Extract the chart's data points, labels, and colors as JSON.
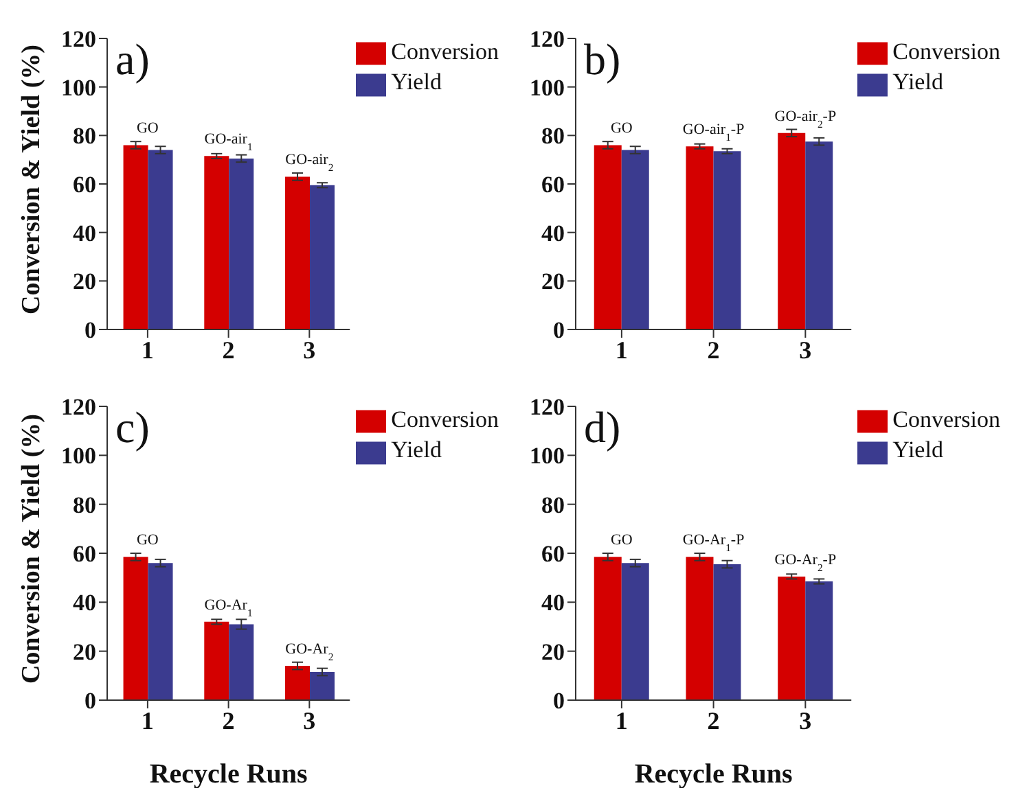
{
  "chart_data": [
    {
      "type": "bar",
      "title": "a)",
      "ylabel": "Conversion & Yield (%)",
      "categories": [
        "1",
        "2",
        "3"
      ],
      "series": [
        {
          "name": "Conversion",
          "color": "#d40000",
          "values": [
            76,
            71.5,
            63
          ],
          "errors": [
            1.5,
            1,
            1.5
          ]
        },
        {
          "name": "Yield",
          "color": "#3b3b8f",
          "values": [
            74,
            70.5,
            59.5
          ],
          "errors": [
            1.5,
            1.5,
            1
          ]
        }
      ],
      "ylim": [
        0,
        120
      ],
      "yticks": [
        0,
        20,
        40,
        60,
        80,
        100,
        120
      ],
      "grid": false,
      "legend": "top right",
      "annotations": [
        {
          "text": "GO",
          "x": "1",
          "y": 76
        },
        {
          "text": "GO-air$_{1}$",
          "x": "2",
          "y": 71.5
        },
        {
          "text": "GO-air$_{2}$",
          "x": "3",
          "y": 63
        }
      ]
    },
    {
      "type": "bar",
      "title": "b)",
      "categories": [
        "1",
        "2",
        "3"
      ],
      "series": [
        {
          "name": "Conversion",
          "color": "#d40000",
          "values": [
            76,
            75.5,
            81
          ],
          "errors": [
            1.5,
            1,
            1.5
          ]
        },
        {
          "name": "Yield",
          "color": "#3b3b8f",
          "values": [
            74,
            73.5,
            77.5
          ],
          "errors": [
            1.5,
            1,
            1.5
          ]
        }
      ],
      "ylim": [
        0,
        120
      ],
      "yticks": [
        0,
        20,
        40,
        60,
        80,
        100,
        120
      ],
      "grid": false,
      "legend": "top right",
      "annotations": [
        {
          "text": "GO",
          "x": "1",
          "y": 76
        },
        {
          "text": "GO-air$_{1}$-P",
          "x": "2",
          "y": 75.5
        },
        {
          "text": "GO-air$_{2}$-P",
          "x": "3",
          "y": 81
        }
      ]
    },
    {
      "type": "bar",
      "title": "c)",
      "xlabel": "Recycle Runs",
      "ylabel": "Conversion & Yield (%)",
      "categories": [
        "1",
        "2",
        "3"
      ],
      "series": [
        {
          "name": "Conversion",
          "color": "#d40000",
          "values": [
            58.5,
            32,
            14
          ],
          "errors": [
            1.5,
            1,
            1.5
          ]
        },
        {
          "name": "Yield",
          "color": "#3b3b8f",
          "values": [
            56,
            31,
            11.5
          ],
          "errors": [
            1.5,
            2,
            1.5
          ]
        }
      ],
      "ylim": [
        0,
        120
      ],
      "yticks": [
        0,
        20,
        40,
        60,
        80,
        100,
        120
      ],
      "grid": false,
      "legend": "top right",
      "annotations": [
        {
          "text": "GO",
          "x": "1",
          "y": 58.5
        },
        {
          "text": "GO-Ar$_{1}$",
          "x": "2",
          "y": 32
        },
        {
          "text": "GO-Ar$_{2}$",
          "x": "3",
          "y": 14
        }
      ]
    },
    {
      "type": "bar",
      "title": "d)",
      "xlabel": "Recycle Runs",
      "categories": [
        "1",
        "2",
        "3"
      ],
      "series": [
        {
          "name": "Conversion",
          "color": "#d40000",
          "values": [
            58.5,
            58.5,
            50.5
          ],
          "errors": [
            1.5,
            1.5,
            1
          ]
        },
        {
          "name": "Yield",
          "color": "#3b3b8f",
          "values": [
            56,
            55.5,
            48.5
          ],
          "errors": [
            1.5,
            1.5,
            1
          ]
        }
      ],
      "ylim": [
        0,
        120
      ],
      "yticks": [
        0,
        20,
        40,
        60,
        80,
        100,
        120
      ],
      "grid": false,
      "legend": "top right",
      "annotations": [
        {
          "text": "GO",
          "x": "1",
          "y": 58.5
        },
        {
          "text": "GO-Ar$_{1}$-P",
          "x": "2",
          "y": 58.5
        },
        {
          "text": "GO-Ar$_{2}$-P",
          "x": "3",
          "y": 50.5
        }
      ]
    }
  ]
}
